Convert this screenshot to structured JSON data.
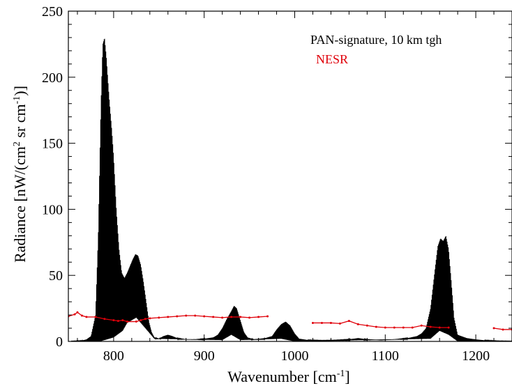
{
  "chart_data": {
    "type": "line",
    "xlabel": "Wavenumber [cm",
    "xlabel_sup": "-1",
    "xlabel_close": "]",
    "ylabel_parts": {
      "a": "Radiance [nW/(cm",
      "sup1": "2",
      "b": " sr cm",
      "sup2": "-1",
      "c": ")]"
    },
    "xlim": [
      750,
      1240
    ],
    "ylim": [
      0,
      250
    ],
    "x_ticks": [
      800,
      900,
      1000,
      1100,
      1200
    ],
    "x_tick_labels": [
      "800",
      "900",
      "1000",
      "1100",
      "1200"
    ],
    "y_ticks": [
      0,
      50,
      100,
      150,
      200,
      250
    ],
    "y_tick_labels": [
      "0",
      "50",
      "100",
      "150",
      "200",
      "250"
    ],
    "grid": false,
    "legend_position": "top-right",
    "legend": [
      {
        "label": "PAN-signature, 10 km tgh",
        "color": "#000000"
      },
      {
        "label": "NESR",
        "color": "#e0000a"
      }
    ],
    "series": [
      {
        "name": "PAN-signature, 10 km tgh",
        "color": "#000000",
        "style": "dense-oscillating",
        "envelope": [
          [
            755,
            0.3
          ],
          [
            765,
            0.6
          ],
          [
            770,
            1.5
          ],
          [
            775,
            4
          ],
          [
            780,
            20
          ],
          [
            783,
            80
          ],
          [
            786,
            180
          ],
          [
            788,
            225
          ],
          [
            790,
            230
          ],
          [
            792,
            215
          ],
          [
            795,
            185
          ],
          [
            798,
            160
          ],
          [
            800,
            140
          ],
          [
            803,
            100
          ],
          [
            806,
            70
          ],
          [
            809,
            52
          ],
          [
            812,
            48
          ],
          [
            815,
            52
          ],
          [
            818,
            57
          ],
          [
            821,
            62
          ],
          [
            824,
            66
          ],
          [
            827,
            65
          ],
          [
            830,
            58
          ],
          [
            833,
            45
          ],
          [
            836,
            30
          ],
          [
            839,
            15
          ],
          [
            842,
            7
          ],
          [
            845,
            3
          ],
          [
            850,
            2
          ],
          [
            855,
            4
          ],
          [
            860,
            5
          ],
          [
            865,
            4
          ],
          [
            870,
            2.5
          ],
          [
            880,
            1.5
          ],
          [
            890,
            1.5
          ],
          [
            900,
            2
          ],
          [
            910,
            3
          ],
          [
            915,
            5
          ],
          [
            920,
            10
          ],
          [
            925,
            17
          ],
          [
            930,
            23
          ],
          [
            933,
            27
          ],
          [
            936,
            25
          ],
          [
            940,
            16
          ],
          [
            944,
            7
          ],
          [
            948,
            3
          ],
          [
            955,
            1.5
          ],
          [
            965,
            2
          ],
          [
            975,
            4
          ],
          [
            980,
            9
          ],
          [
            985,
            13
          ],
          [
            990,
            15
          ],
          [
            995,
            12
          ],
          [
            1000,
            6
          ],
          [
            1005,
            2
          ],
          [
            1015,
            1
          ],
          [
            1030,
            0.8
          ],
          [
            1045,
            1
          ],
          [
            1060,
            1.5
          ],
          [
            1070,
            2.5
          ],
          [
            1080,
            1.5
          ],
          [
            1095,
            1
          ],
          [
            1110,
            1.5
          ],
          [
            1125,
            2.5
          ],
          [
            1135,
            4
          ],
          [
            1140,
            6
          ],
          [
            1145,
            10
          ],
          [
            1150,
            25
          ],
          [
            1155,
            55
          ],
          [
            1158,
            72
          ],
          [
            1161,
            78
          ],
          [
            1164,
            76
          ],
          [
            1167,
            80
          ],
          [
            1170,
            70
          ],
          [
            1173,
            45
          ],
          [
            1176,
            18
          ],
          [
            1180,
            5
          ],
          [
            1190,
            2.5
          ],
          [
            1200,
            1.5
          ],
          [
            1210,
            0.8
          ],
          [
            1225,
            0.4
          ],
          [
            1240,
            0.3
          ]
        ],
        "baseline": [
          [
            755,
            0
          ],
          [
            785,
            0
          ],
          [
            800,
            3
          ],
          [
            810,
            8
          ],
          [
            815,
            14
          ],
          [
            825,
            18
          ],
          [
            835,
            10
          ],
          [
            845,
            2
          ],
          [
            920,
            1
          ],
          [
            930,
            5
          ],
          [
            940,
            1
          ],
          [
            985,
            2
          ],
          [
            1000,
            0
          ],
          [
            1150,
            2
          ],
          [
            1160,
            8
          ],
          [
            1170,
            5
          ],
          [
            1180,
            0
          ],
          [
            1240,
            0
          ]
        ]
      },
      {
        "name": "NESR",
        "color": "#e0000a",
        "segments": [
          [
            [
              750,
              19
            ],
            [
              757,
              20.5
            ],
            [
              760,
              22
            ],
            [
              765,
              19.5
            ],
            [
              770,
              18.5
            ],
            [
              780,
              18.5
            ],
            [
              790,
              17
            ],
            [
              800,
              16
            ],
            [
              805,
              15.5
            ],
            [
              810,
              16
            ],
            [
              815,
              15
            ],
            [
              825,
              15
            ],
            [
              830,
              16
            ],
            [
              835,
              17
            ],
            [
              840,
              17.5
            ],
            [
              850,
              18
            ],
            [
              860,
              18.5
            ],
            [
              870,
              19
            ],
            [
              880,
              19.5
            ],
            [
              890,
              19.5
            ],
            [
              900,
              19
            ],
            [
              910,
              18.5
            ],
            [
              920,
              18
            ],
            [
              930,
              18.5
            ],
            [
              940,
              18.5
            ],
            [
              950,
              18
            ],
            [
              960,
              18.5
            ],
            [
              970,
              19
            ]
          ],
          [
            [
              1020,
              14
            ],
            [
              1030,
              14
            ],
            [
              1040,
              14
            ],
            [
              1050,
              13.5
            ],
            [
              1060,
              15.5
            ],
            [
              1070,
              13
            ],
            [
              1080,
              12
            ],
            [
              1090,
              11
            ],
            [
              1100,
              10.5
            ],
            [
              1110,
              10.5
            ],
            [
              1120,
              10.5
            ],
            [
              1130,
              10.5
            ],
            [
              1140,
              12
            ],
            [
              1150,
              11
            ],
            [
              1160,
              10.5
            ],
            [
              1170,
              10.5
            ]
          ],
          [
            [
              1220,
              10
            ],
            [
              1230,
              9
            ],
            [
              1240,
              9
            ]
          ]
        ]
      }
    ]
  }
}
